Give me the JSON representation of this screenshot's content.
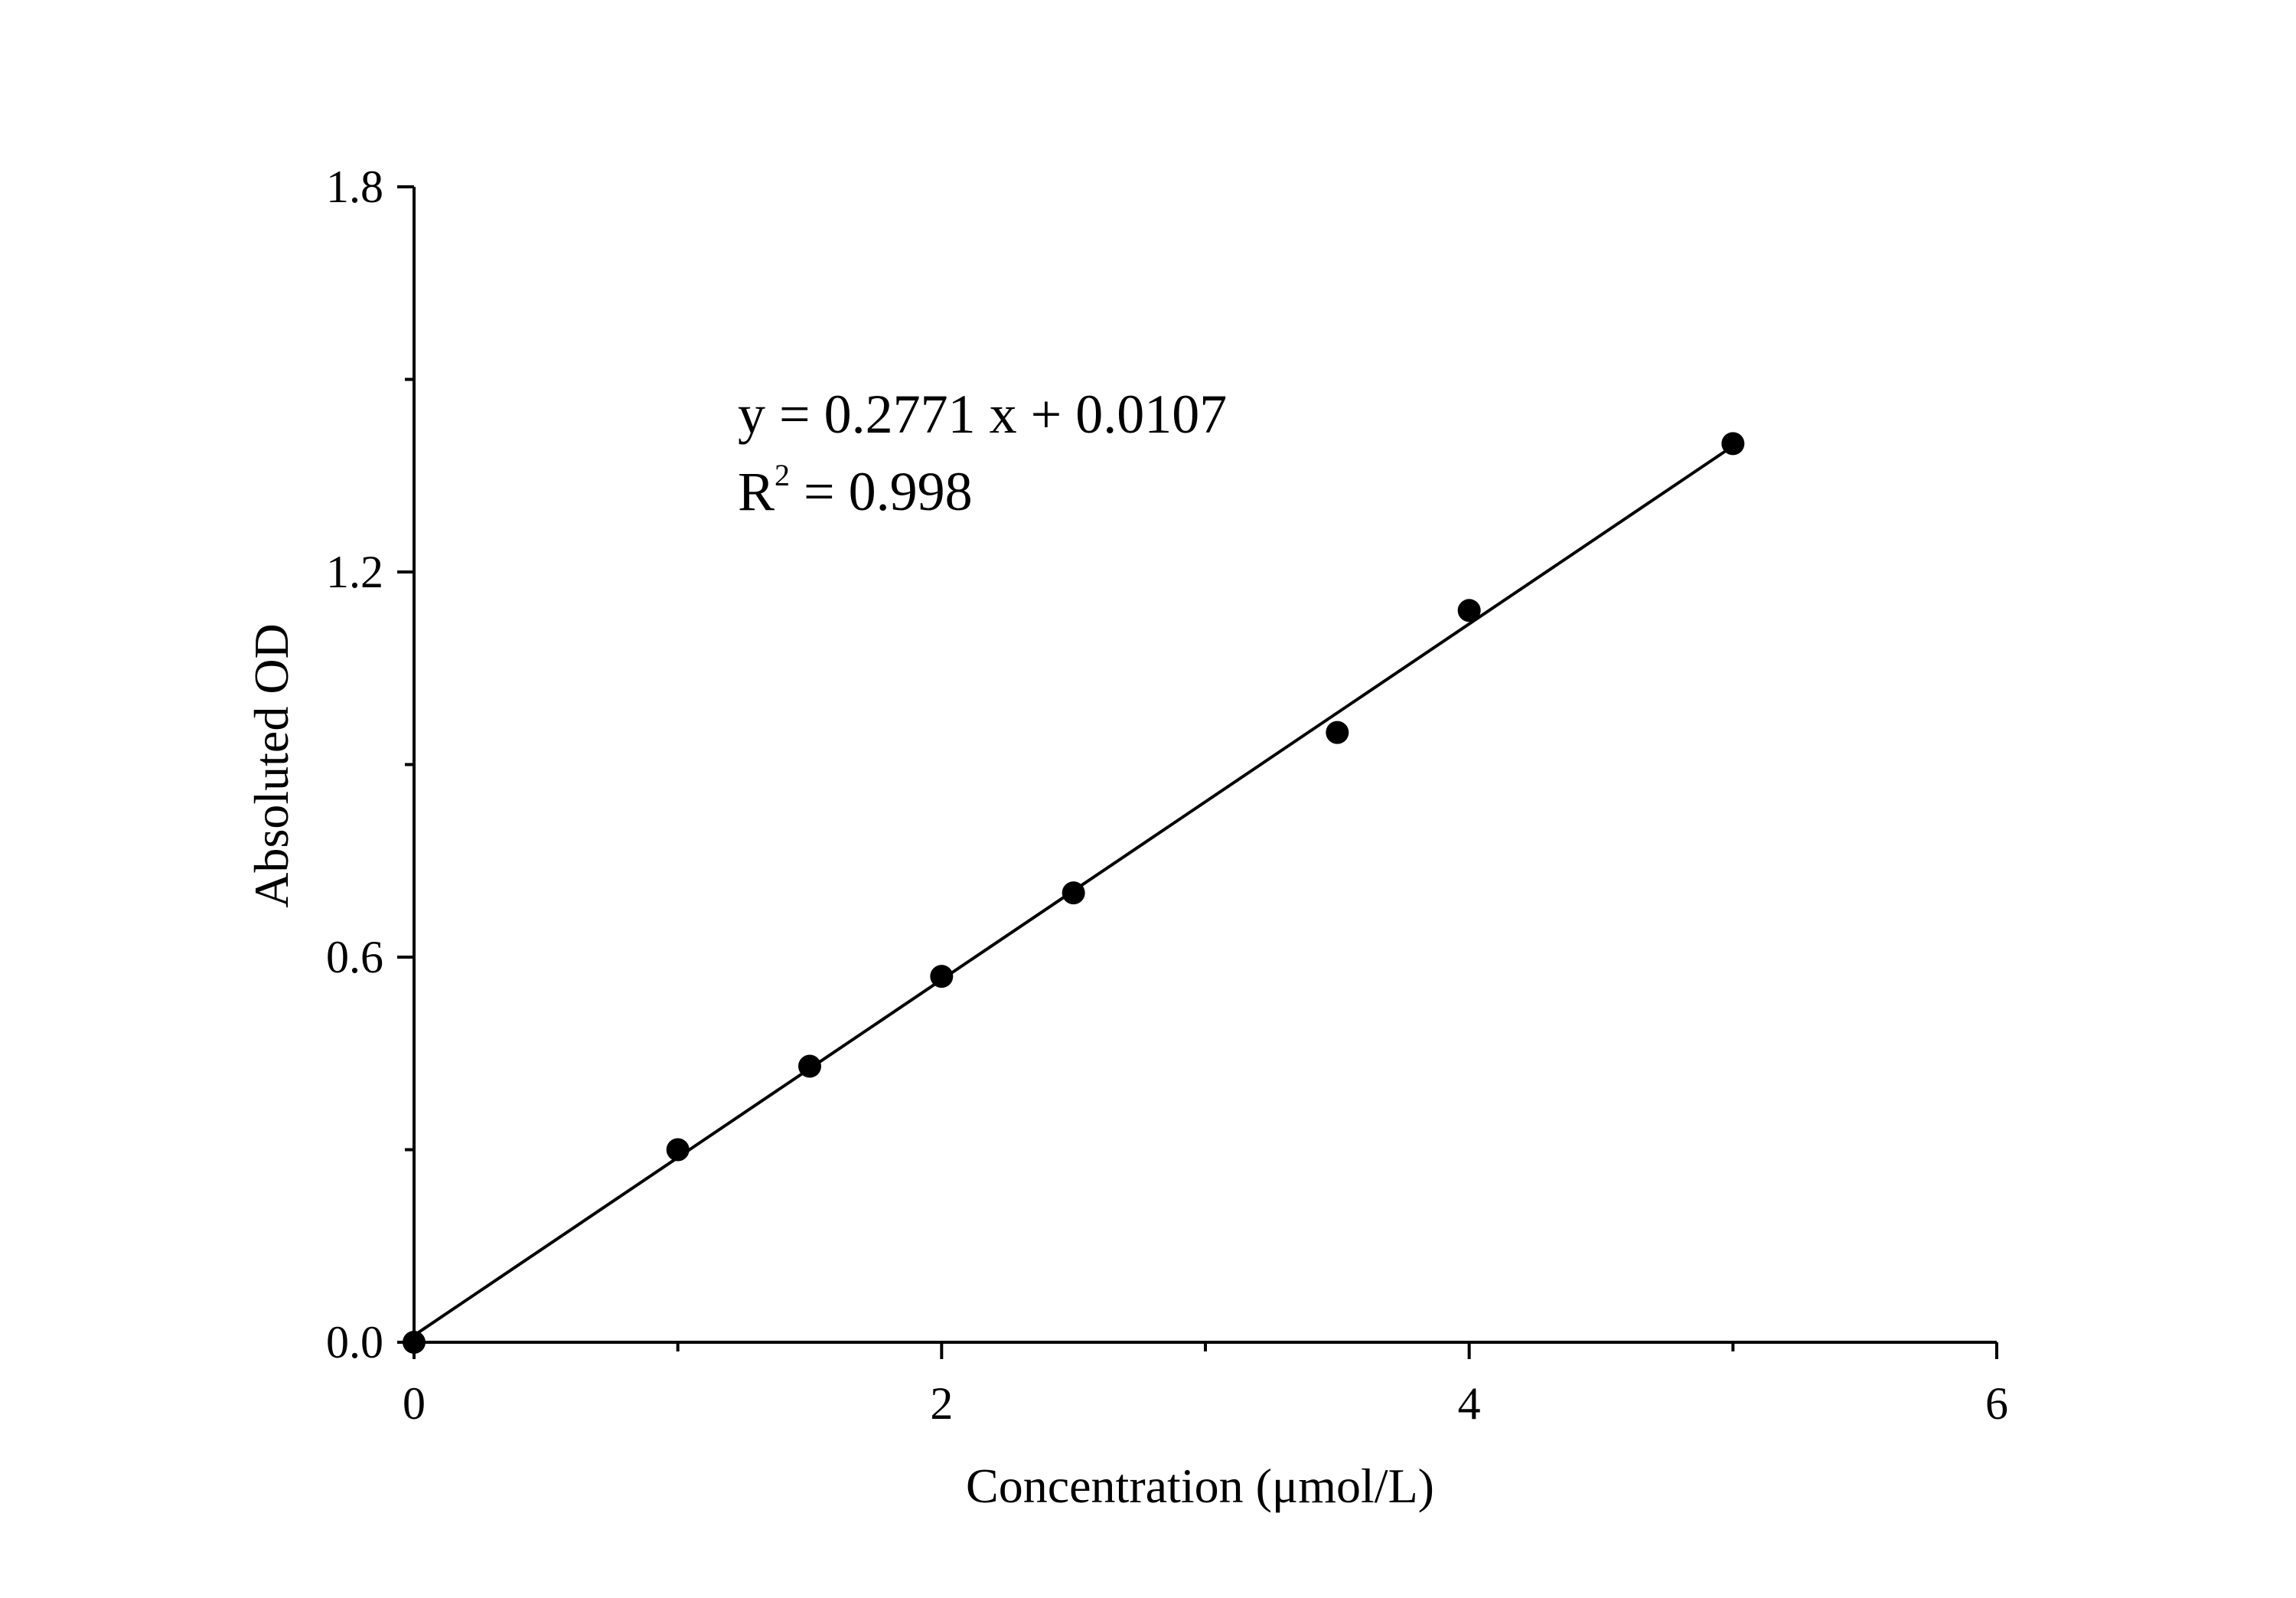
{
  "chart_data": {
    "type": "scatter",
    "title": "",
    "xlabel": "Concentration (μmol/L)",
    "ylabel": "Absoluted OD",
    "xlim": [
      0,
      6
    ],
    "ylim": [
      0,
      1.8
    ],
    "x_ticks": [
      "0",
      "2",
      "4",
      "6"
    ],
    "x_tick_values": [
      0,
      2,
      4,
      6
    ],
    "y_ticks": [
      "0.0",
      "0.6",
      "1.2",
      "1.8"
    ],
    "y_tick_values": [
      0,
      0.6,
      1.2,
      1.8
    ],
    "x_minor_ticks": [
      1,
      3,
      5
    ],
    "y_minor_ticks": [
      0.3,
      0.9,
      1.5
    ],
    "grid": false,
    "legend": "none",
    "series": [
      {
        "points": [
          {
            "x": 0,
            "y": 0.0
          },
          {
            "x": 1,
            "y": 0.3
          },
          {
            "x": 1.5,
            "y": 0.43
          },
          {
            "x": 2,
            "y": 0.57
          },
          {
            "x": 2.5,
            "y": 0.7
          },
          {
            "x": 3.5,
            "y": 0.95
          },
          {
            "x": 4,
            "y": 1.14
          },
          {
            "x": 5,
            "y": 1.4
          }
        ]
      }
    ],
    "fit_line": {
      "slope": 0.2771,
      "intercept": 0.0107,
      "x_range": [
        0,
        5
      ]
    },
    "annotations": {
      "equation": "y = 0.2771 x + 0.0107",
      "r2_prefix": "R",
      "r2_sup": "2",
      "r2_value": " = 0.998"
    },
    "colors": {
      "marker": "#000000",
      "line": "#000000",
      "axis": "#000000"
    }
  }
}
